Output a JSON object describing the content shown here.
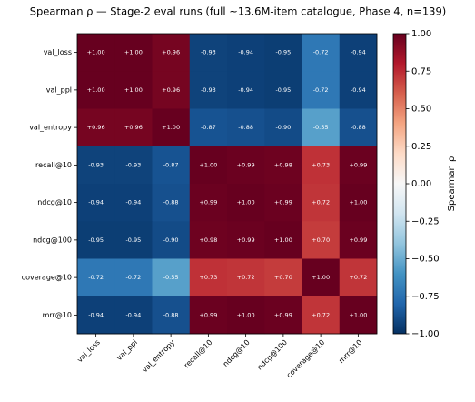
{
  "chart_data": {
    "type": "heatmap",
    "title": "Spearman ρ — Stage-2 eval runs (full  ~13.6M-item catalogue, Phase 4, n=139)",
    "x_categories": [
      "val_loss",
      "val_ppl",
      "val_entropy",
      "recall@10",
      "ndcg@10",
      "ndcg@100",
      "coverage@10",
      "mrr@10"
    ],
    "y_categories": [
      "val_loss",
      "val_ppl",
      "val_entropy",
      "recall@10",
      "ndcg@10",
      "ndcg@100",
      "coverage@10",
      "mrr@10"
    ],
    "values": [
      [
        1.0,
        1.0,
        0.96,
        -0.93,
        -0.94,
        -0.95,
        -0.72,
        -0.94
      ],
      [
        1.0,
        1.0,
        0.96,
        -0.93,
        -0.94,
        -0.95,
        -0.72,
        -0.94
      ],
      [
        0.96,
        0.96,
        1.0,
        -0.87,
        -0.88,
        -0.9,
        -0.55,
        -0.88
      ],
      [
        -0.93,
        -0.93,
        -0.87,
        1.0,
        0.99,
        0.98,
        0.73,
        0.99
      ],
      [
        -0.94,
        -0.94,
        -0.88,
        0.99,
        1.0,
        0.99,
        0.72,
        1.0
      ],
      [
        -0.95,
        -0.95,
        -0.9,
        0.98,
        0.99,
        1.0,
        0.7,
        0.99
      ],
      [
        -0.72,
        -0.72,
        -0.55,
        0.73,
        0.72,
        0.7,
        1.0,
        0.72
      ],
      [
        -0.94,
        -0.94,
        -0.88,
        0.99,
        1.0,
        0.99,
        0.72,
        1.0
      ]
    ],
    "value_labels": [
      [
        "+1.00",
        "+1.00",
        "+0.96",
        "-0.93",
        "-0.94",
        "-0.95",
        "-0.72",
        "-0.94"
      ],
      [
        "+1.00",
        "+1.00",
        "+0.96",
        "-0.93",
        "-0.94",
        "-0.95",
        "-0.72",
        "-0.94"
      ],
      [
        "+0.96",
        "+0.96",
        "+1.00",
        "-0.87",
        "-0.88",
        "-0.90",
        "-0.55",
        "-0.88"
      ],
      [
        "-0.93",
        "-0.93",
        "-0.87",
        "+1.00",
        "+0.99",
        "+0.98",
        "+0.73",
        "+0.99"
      ],
      [
        "-0.94",
        "-0.94",
        "-0.88",
        "+0.99",
        "+1.00",
        "+0.99",
        "+0.72",
        "+1.00"
      ],
      [
        "-0.95",
        "-0.95",
        "-0.90",
        "+0.98",
        "+0.99",
        "+1.00",
        "+0.70",
        "+0.99"
      ],
      [
        "-0.72",
        "-0.72",
        "-0.55",
        "+0.73",
        "+0.72",
        "+0.70",
        "+1.00",
        "+0.72"
      ],
      [
        "-0.94",
        "-0.94",
        "-0.88",
        "+0.99",
        "+1.00",
        "+0.99",
        "+0.72",
        "+1.00"
      ]
    ],
    "colormap": [
      "#053061",
      "#2166ac",
      "#4393c3",
      "#92c5de",
      "#d1e5f0",
      "#f7f7f7",
      "#fddbc7",
      "#f4a582",
      "#d6604d",
      "#b2182b",
      "#67001f"
    ],
    "colorbar_label": "Spearman ρ",
    "clim": [
      -1,
      1
    ],
    "cticks": [
      {
        "value": 1,
        "label": "1.00"
      },
      {
        "value": 0.75,
        "label": "0.75"
      },
      {
        "value": 0.5,
        "label": "0.50"
      },
      {
        "value": 0.25,
        "label": "0.25"
      },
      {
        "value": 0,
        "label": "0.00"
      },
      {
        "value": -0.25,
        "label": "−0.25"
      },
      {
        "value": -0.5,
        "label": "−0.50"
      },
      {
        "value": -0.75,
        "label": "−0.75"
      },
      {
        "value": -1,
        "label": "−1.00"
      }
    ]
  }
}
